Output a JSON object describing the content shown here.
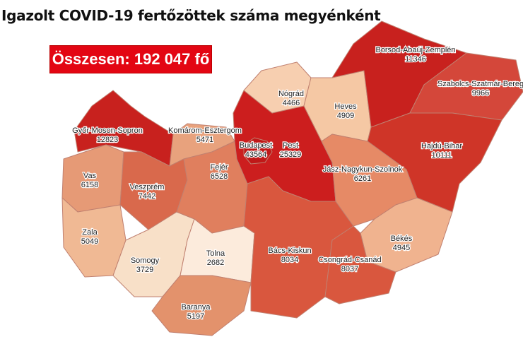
{
  "title": "Igazolt COVID-19 fertőzöttek száma megyénként",
  "total": "Összesen: 192 047 fő",
  "counties": [
    {
      "id": "gyor",
      "name": "Győr-Moson-Sopron",
      "value": "12823",
      "color": "#c8211e"
    },
    {
      "id": "komarom",
      "name": "Komárom-Esztergom",
      "value": "5471",
      "color": "#e8a27d"
    },
    {
      "id": "vas",
      "name": "Vas",
      "value": "6158",
      "color": "#e69a76"
    },
    {
      "id": "veszprem",
      "name": "Veszprém",
      "value": "7442",
      "color": "#d9694c"
    },
    {
      "id": "zala",
      "name": "Zala",
      "value": "5049",
      "color": "#f0b994"
    },
    {
      "id": "somogy",
      "name": "Somogy",
      "value": "3729",
      "color": "#f8e0c8"
    },
    {
      "id": "fejer",
      "name": "Fejér",
      "value": "6528",
      "color": "#e07f5e"
    },
    {
      "id": "tolna",
      "name": "Tolna",
      "value": "2682",
      "color": "#fcebdc"
    },
    {
      "id": "baranya",
      "name": "Baranya",
      "value": "5197",
      "color": "#e3926c"
    },
    {
      "id": "pest",
      "name": "Pest",
      "value": "25329",
      "color": "#cc1e1e"
    },
    {
      "id": "budapest",
      "name": "Budapest",
      "value": "43564",
      "color": "#c01818"
    },
    {
      "id": "nograd",
      "name": "Nógrád",
      "value": "4466",
      "color": "#f7cfb0"
    },
    {
      "id": "heves",
      "name": "Heves",
      "value": "4909",
      "color": "#f5c8a4"
    },
    {
      "id": "baz",
      "name": "Borsod-Abaúj-Zemplén",
      "value": "11346",
      "color": "#c8211e"
    },
    {
      "id": "szabolcs",
      "name": "Szabolcs-Szatmár-Bereg",
      "value": "9966",
      "color": "#d4473a"
    },
    {
      "id": "hajdu",
      "name": "Hajdú-Bihar",
      "value": "10111",
      "color": "#cf3528"
    },
    {
      "id": "jnsz",
      "name": "Jász-Nagykun-Szolnok",
      "value": "6261",
      "color": "#e68a66"
    },
    {
      "id": "bacs",
      "name": "Bács-Kiskun",
      "value": "8034",
      "color": "#d9573e"
    },
    {
      "id": "bekes",
      "name": "Békés",
      "value": "4945",
      "color": "#f0b38f"
    },
    {
      "id": "csongrad",
      "name": "Csongrád-Csanád",
      "value": "8037",
      "color": "#d9573e"
    }
  ]
}
